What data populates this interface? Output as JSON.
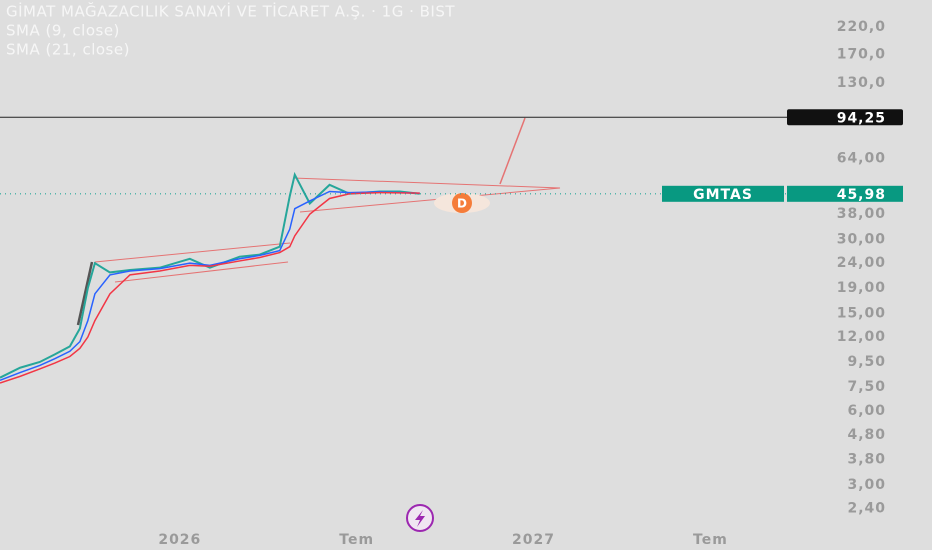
{
  "chart_data": {
    "type": "line",
    "title": "GİMAT MAĞAZACILIK SANAYİ VE TİCARET A.Ş. · 1G · BIST",
    "log_scale": true,
    "xlim": [
      -6.1,
      20.7
    ],
    "xticks": [
      {
        "value": 0,
        "label": "2026"
      },
      {
        "value": 6,
        "label": "Tem"
      },
      {
        "value": 12,
        "label": "2027"
      },
      {
        "value": 18,
        "label": "Tem"
      }
    ],
    "ylim": [
      2.06,
      283
    ],
    "yticks": [
      {
        "value": 220,
        "label": "220,0"
      },
      {
        "value": 170,
        "label": "170,0"
      },
      {
        "value": 130,
        "label": "130,0"
      },
      {
        "value": 64,
        "label": "64,00"
      },
      {
        "value": 38,
        "label": "38,00"
      },
      {
        "value": 30,
        "label": "30,00"
      },
      {
        "value": 24,
        "label": "24,00"
      },
      {
        "value": 19,
        "label": "19,00"
      },
      {
        "value": 15,
        "label": "15,00"
      },
      {
        "value": 12,
        "label": "12,00"
      },
      {
        "value": 9.5,
        "label": "9,50"
      },
      {
        "value": 7.5,
        "label": "7,50"
      },
      {
        "value": 6,
        "label": "6,00"
      },
      {
        "value": 4.8,
        "label": "4,80"
      },
      {
        "value": 3.8,
        "label": "3,80"
      },
      {
        "value": 3,
        "label": "3,00"
      },
      {
        "value": 2.4,
        "label": "2,40"
      }
    ],
    "x": [
      -6.1,
      -5.42,
      -4.75,
      -4.24,
      -3.73,
      -3.39,
      -3.12,
      -2.88,
      -2.37,
      -1.69,
      -0.68,
      0.34,
      1.02,
      2.03,
      2.71,
      3.39,
      3.73,
      3.9,
      4.41,
      5.08,
      5.76,
      6.78,
      7.46,
      8.14
    ],
    "series": [
      {
        "name": "GMTAS",
        "color": "#26a69a",
        "values": [
          8.2,
          9.0,
          9.5,
          10.2,
          11,
          13,
          19,
          24,
          22,
          22.5,
          23,
          25,
          23,
          25.5,
          26,
          28,
          45,
          55,
          42,
          50,
          46,
          47,
          47,
          45.98
        ]
      },
      {
        "name": "SMA (9, close)",
        "color": "#2962ff",
        "values": [
          8.0,
          8.6,
          9.2,
          9.8,
          10.5,
          11.5,
          14,
          18,
          21.5,
          22.3,
          22.8,
          24,
          23.5,
          25,
          25.8,
          27,
          33,
          40,
          43,
          47,
          46.5,
          46.8,
          46.5,
          46.2
        ]
      },
      {
        "name": "SMA (21, close)",
        "color": "#f23645",
        "values": [
          7.8,
          8.3,
          8.9,
          9.4,
          10,
          10.8,
          12,
          14,
          18,
          21.5,
          22.3,
          23.5,
          23.3,
          24.5,
          25.3,
          26.5,
          28,
          31,
          38,
          44,
          46,
          46.5,
          46.4,
          46.3
        ]
      }
    ],
    "level": {
      "value": 94.25,
      "label": "94,25"
    },
    "last_price": {
      "symbol": "GMTAS",
      "value": 45.98,
      "label": "45,98"
    }
  }
}
